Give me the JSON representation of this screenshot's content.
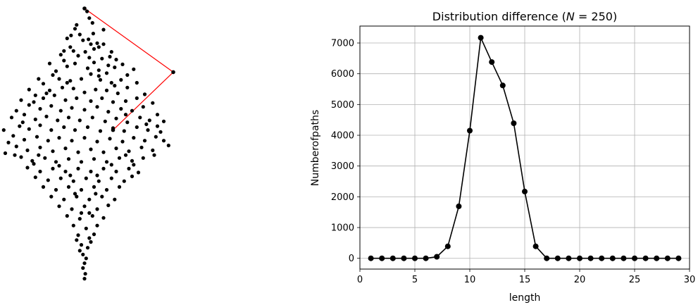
{
  "scatter_panel": {
    "dot_color": "#000000",
    "path_color": "#ff0000",
    "points": [
      [
        0.0,
        14.6
      ],
      [
        0.16,
        14.3
      ],
      [
        0.5,
        13.1
      ],
      [
        -0.6,
        12.5
      ],
      [
        -0.85,
        11.8
      ],
      [
        -1.1,
        11.5
      ],
      [
        0.25,
        11.4
      ],
      [
        0.55,
        12.0
      ],
      [
        -0.3,
        11.9
      ],
      [
        0.4,
        10.9
      ],
      [
        0.8,
        11.0
      ],
      [
        -0.9,
        10.6
      ],
      [
        -0.1,
        11.3
      ],
      [
        0.05,
        10.1
      ],
      [
        0.9,
        10.6
      ],
      [
        1.2,
        10.9
      ],
      [
        -1.5,
        9.8
      ],
      [
        -1.3,
        9.2
      ],
      [
        -0.4,
        9.7
      ],
      [
        0.3,
        9.5
      ],
      [
        0.6,
        9.0
      ],
      [
        1.1,
        9.4
      ],
      [
        1.6,
        9.6
      ],
      [
        2.0,
        9.3
      ],
      [
        -1.1,
        8.6
      ],
      [
        -0.6,
        8.9
      ],
      [
        0.2,
        8.4
      ],
      [
        0.9,
        8.2
      ],
      [
        1.4,
        7.9
      ],
      [
        1.9,
        8.5
      ],
      [
        2.4,
        8.8
      ],
      [
        3.1,
        8.3
      ],
      [
        -2.0,
        7.7
      ],
      [
        -1.6,
        7.3
      ],
      [
        -0.9,
        7.1
      ],
      [
        -0.2,
        7.3
      ],
      [
        0.4,
        7.8
      ],
      [
        1.0,
        7.2
      ],
      [
        1.7,
        6.9
      ],
      [
        2.3,
        7.2
      ],
      [
        -2.6,
        6.8
      ],
      [
        -2.2,
        6.1
      ],
      [
        -1.4,
        6.4
      ],
      [
        -0.7,
        6.3
      ],
      [
        0.0,
        5.9
      ],
      [
        0.7,
        6.2
      ],
      [
        1.4,
        6.1
      ],
      [
        2.1,
        5.8
      ],
      [
        2.7,
        6.4
      ],
      [
        -3.1,
        5.6
      ],
      [
        -2.6,
        5.3
      ],
      [
        -1.9,
        5.6
      ],
      [
        -1.2,
        5.1
      ],
      [
        -0.5,
        5.3
      ],
      [
        0.4,
        5.0
      ],
      [
        1.1,
        5.3
      ],
      [
        1.8,
        4.9
      ],
      [
        2.6,
        5.0
      ],
      [
        3.3,
        5.3
      ],
      [
        -3.5,
        4.6
      ],
      [
        -2.8,
        4.2
      ],
      [
        -2.1,
        4.5
      ],
      [
        -1.5,
        4.0
      ],
      [
        -0.8,
        4.3
      ],
      [
        0.0,
        4.1
      ],
      [
        0.8,
        4.4
      ],
      [
        1.5,
        3.9
      ],
      [
        2.3,
        4.2
      ],
      [
        3.0,
        4.0
      ],
      [
        3.7,
        4.4
      ],
      [
        -3.8,
        3.6
      ],
      [
        -3.1,
        3.1
      ],
      [
        -2.4,
        3.4
      ],
      [
        -1.7,
        3.0
      ],
      [
        -1.0,
        3.3
      ],
      [
        -0.3,
        3.0
      ],
      [
        0.5,
        3.3
      ],
      [
        1.3,
        2.9
      ],
      [
        2.0,
        3.2
      ],
      [
        2.7,
        2.8
      ],
      [
        3.5,
        3.3
      ],
      [
        4.1,
        3.0
      ],
      [
        -4.1,
        2.4
      ],
      [
        -3.5,
        2.1
      ],
      [
        -2.8,
        2.5
      ],
      [
        -2.1,
        2.0
      ],
      [
        -1.3,
        2.3
      ],
      [
        -0.6,
        2.0
      ],
      [
        0.2,
        2.3
      ],
      [
        1.0,
        1.9
      ],
      [
        1.8,
        2.2
      ],
      [
        2.5,
        1.9
      ],
      [
        3.3,
        2.3
      ],
      [
        4.0,
        2.0
      ],
      [
        4.6,
        2.4
      ],
      [
        -4.5,
        1.4
      ],
      [
        -3.8,
        1.0
      ],
      [
        -3.0,
        1.3
      ],
      [
        -2.3,
        0.9
      ],
      [
        -1.6,
        1.2
      ],
      [
        -0.8,
        0.9
      ],
      [
        0.0,
        1.2
      ],
      [
        0.8,
        0.8
      ],
      [
        1.6,
        1.1
      ],
      [
        2.4,
        0.8
      ],
      [
        3.1,
        1.2
      ],
      [
        3.8,
        0.9
      ],
      [
        4.5,
        1.3
      ],
      [
        5.0,
        0.9
      ],
      [
        -4.3,
        0.3
      ],
      [
        -3.6,
        -0.1
      ],
      [
        -2.8,
        0.2
      ],
      [
        -2.0,
        -0.2
      ],
      [
        -1.2,
        0.1
      ],
      [
        -0.4,
        -0.3
      ],
      [
        0.4,
        0.0
      ],
      [
        1.2,
        -0.3
      ],
      [
        2.0,
        0.1
      ],
      [
        2.8,
        -0.2
      ],
      [
        3.6,
        0.2
      ],
      [
        4.3,
        -0.1
      ],
      [
        -4.0,
        -0.8
      ],
      [
        -3.3,
        -1.2
      ],
      [
        -2.5,
        -0.9
      ],
      [
        -1.8,
        -1.3
      ],
      [
        -1.0,
        -1.0
      ],
      [
        -0.2,
        -1.3
      ],
      [
        0.6,
        -1.0
      ],
      [
        1.4,
        -1.3
      ],
      [
        2.2,
        -0.9
      ],
      [
        3.0,
        -1.2
      ],
      [
        3.7,
        -0.9
      ],
      [
        -3.6,
        -1.9
      ],
      [
        -2.8,
        -2.3
      ],
      [
        -2.0,
        -2.0
      ],
      [
        -1.2,
        -2.3
      ],
      [
        -0.4,
        -2.0
      ],
      [
        0.4,
        -2.3
      ],
      [
        1.2,
        -2.0
      ],
      [
        2.0,
        -2.3
      ],
      [
        2.8,
        -2.0
      ],
      [
        3.4,
        -2.4
      ],
      [
        -3.1,
        -2.9
      ],
      [
        -2.3,
        -3.2
      ],
      [
        -1.5,
        -3.0
      ],
      [
        -0.7,
        -3.3
      ],
      [
        0.1,
        -3.0
      ],
      [
        0.9,
        -3.3
      ],
      [
        1.7,
        -3.0
      ],
      [
        2.5,
        -3.3
      ],
      [
        3.0,
        -2.8
      ],
      [
        -2.6,
        -3.9
      ],
      [
        -1.8,
        -4.2
      ],
      [
        -1.0,
        -3.9
      ],
      [
        -0.2,
        -4.2
      ],
      [
        0.6,
        -3.9
      ],
      [
        1.4,
        -4.2
      ],
      [
        2.2,
        -3.9
      ],
      [
        -2.1,
        -4.9
      ],
      [
        -1.3,
        -5.2
      ],
      [
        -0.5,
        -4.9
      ],
      [
        0.3,
        -5.2
      ],
      [
        1.1,
        -4.9
      ],
      [
        1.9,
        -5.2
      ],
      [
        -1.6,
        -5.9
      ],
      [
        -0.8,
        -6.2
      ],
      [
        0.0,
        -5.9
      ],
      [
        0.8,
        -6.2
      ],
      [
        1.5,
        -5.8
      ],
      [
        -1.1,
        -6.9
      ],
      [
        -0.3,
        -7.2
      ],
      [
        0.5,
        -6.9
      ],
      [
        1.2,
        -7.1
      ],
      [
        -0.7,
        -7.9
      ],
      [
        0.1,
        -8.2
      ],
      [
        0.8,
        -7.9
      ],
      [
        -0.4,
        -8.9
      ],
      [
        0.3,
        -9.2
      ],
      [
        0.6,
        -8.8
      ],
      [
        -0.2,
        -9.9
      ],
      [
        0.2,
        -10.2
      ],
      [
        -0.1,
        -10.9
      ],
      [
        0.1,
        -11.3
      ],
      [
        -0.5,
        -9.4
      ],
      [
        0.4,
        -9.6
      ],
      [
        -0.3,
        -10.5
      ],
      [
        0.0,
        -11.8
      ],
      [
        -0.1,
        -12.3
      ],
      [
        0.05,
        -12.9
      ],
      [
        0.0,
        -13.4
      ],
      [
        -3.2,
        4.9
      ],
      [
        -2.4,
        5.8
      ],
      [
        1.9,
        6.6
      ],
      [
        2.6,
        3.6
      ],
      [
        -1.1,
        6.9
      ],
      [
        0.9,
        7.6
      ],
      [
        -1.8,
        8.1
      ],
      [
        1.5,
        8.7
      ],
      [
        -0.7,
        10.2
      ],
      [
        0.6,
        10.4
      ],
      [
        -2.9,
        -0.6
      ],
      [
        2.6,
        -0.6
      ],
      [
        -1.6,
        -1.7
      ],
      [
        1.7,
        -1.6
      ],
      [
        -0.9,
        -2.7
      ],
      [
        0.8,
        -2.7
      ],
      [
        -0.6,
        -4.6
      ],
      [
        0.7,
        -4.6
      ],
      [
        -0.2,
        -6.6
      ],
      [
        0.3,
        -6.6
      ],
      [
        3.9,
        2.6
      ],
      [
        -3.9,
        2.8
      ],
      [
        4.8,
        1.8
      ],
      [
        -4.8,
        0.7
      ],
      [
        5.3,
        0.4
      ],
      [
        -5.0,
        -0.4
      ],
      [
        4.4,
        -0.6
      ],
      [
        -4.4,
        -0.6
      ],
      [
        3.1,
        -1.6
      ],
      [
        -3.2,
        -1.5
      ],
      [
        1.2,
        12.4
      ],
      [
        -0.5,
        12.9
      ],
      [
        0.3,
        13.6
      ],
      [
        -1.3,
        10.2
      ],
      [
        1.7,
        10.1
      ],
      [
        -2.2,
        8.9
      ],
      [
        2.7,
        7.7
      ],
      [
        -2.9,
        7.3
      ],
      [
        3.3,
        6.9
      ],
      [
        -3.5,
        6.2
      ],
      [
        3.8,
        5.7
      ],
      [
        -4.0,
        5.1
      ],
      [
        4.3,
        4.8
      ],
      [
        -4.3,
        4.0
      ],
      [
        4.6,
        3.6
      ],
      [
        -4.6,
        3.3
      ],
      [
        5.0,
        2.9
      ],
      [
        -5.1,
        2.0
      ]
    ],
    "path_points": [
      [
        0.0,
        14.6
      ],
      [
        5.6,
        8.0
      ],
      [
        1.8,
        2.0
      ]
    ]
  },
  "chart_data": {
    "type": "line",
    "title": "Distribution difference (N = 250)",
    "xlabel": "length",
    "ylabel": "Numberofpaths",
    "xlim": [
      0,
      30
    ],
    "ylim": [
      -350,
      7550
    ],
    "xticks": [
      0,
      5,
      10,
      15,
      20,
      25,
      30
    ],
    "yticks": [
      0,
      1000,
      2000,
      3000,
      4000,
      5000,
      6000,
      7000
    ],
    "grid": true,
    "marker": "circle",
    "color": "#000000",
    "x": [
      1,
      2,
      3,
      4,
      5,
      6,
      7,
      8,
      9,
      10,
      11,
      12,
      13,
      14,
      15,
      16,
      17,
      18,
      19,
      20,
      21,
      22,
      23,
      24,
      25,
      26,
      27,
      28,
      29
    ],
    "y": [
      0,
      0,
      0,
      0,
      0,
      0,
      50,
      390,
      1690,
      4150,
      7170,
      6380,
      5620,
      4390,
      2170,
      390,
      0,
      0,
      0,
      0,
      0,
      0,
      0,
      0,
      0,
      0,
      0,
      0,
      0
    ]
  }
}
